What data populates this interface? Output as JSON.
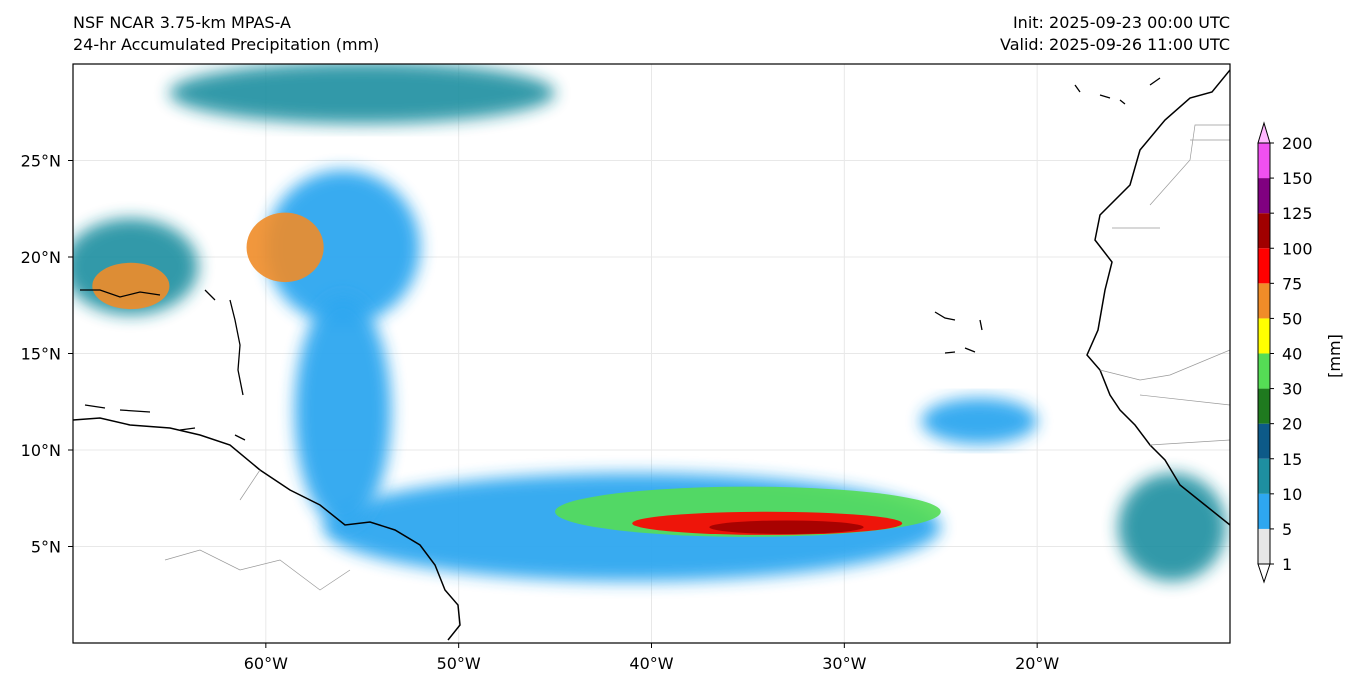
{
  "header": {
    "model": "NSF NCAR 3.75-km MPAS-A",
    "field": "24-hr Accumulated Precipitation (mm)",
    "init": "Init: 2025-09-23 00:00 UTC",
    "valid": "Valid: 2025-09-26 11:00 UTC"
  },
  "map": {
    "lon_range": [
      -70,
      -10
    ],
    "lat_range": [
      0,
      30
    ],
    "lon_ticks": [
      "60°W",
      "50°W",
      "40°W",
      "30°W",
      "20°W"
    ],
    "lon_tick_values": [
      -60,
      -50,
      -40,
      -30,
      -20
    ],
    "lat_ticks": [
      "5°N",
      "10°N",
      "15°N",
      "20°N",
      "25°N"
    ],
    "lat_tick_values": [
      5,
      10,
      15,
      20,
      25
    ],
    "gridlines": true
  },
  "colorbar": {
    "unit_label": "[mm]",
    "levels": [
      "1",
      "5",
      "10",
      "15",
      "20",
      "30",
      "40",
      "50",
      "75",
      "100",
      "125",
      "150",
      "200"
    ],
    "colors": [
      "#e6e6e6",
      "#2ea7f0",
      "#1e8fa0",
      "#0d5a88",
      "#1f7a1f",
      "#55dd55",
      "#ffff00",
      "#f08c28",
      "#ff0000",
      "#a00000",
      "#800080",
      "#f050f0"
    ]
  },
  "precip_regions": [
    {
      "lon": -41,
      "lat": 6.0,
      "rlon": 16,
      "rlat": 2.8,
      "level": 1
    },
    {
      "lon": -35,
      "lat": 6.8,
      "rlon": 10,
      "rlat": 1.3,
      "level": 5
    },
    {
      "lon": -34,
      "lat": 6.2,
      "rlon": 7,
      "rlat": 0.6,
      "level": 8
    },
    {
      "lon": -33,
      "lat": 6.0,
      "rlon": 4,
      "rlat": 0.35,
      "level": 9
    },
    {
      "lon": -56,
      "lat": 20.5,
      "rlon": 4,
      "rlat": 4,
      "level": 1
    },
    {
      "lon": -59,
      "lat": 20.5,
      "rlon": 2,
      "rlat": 1.8,
      "level": 7
    },
    {
      "lon": -67,
      "lat": 19.5,
      "rlon": 3.5,
      "rlat": 2.5,
      "level": 2
    },
    {
      "lon": -67,
      "lat": 18.5,
      "rlon": 2,
      "rlat": 1.2,
      "level": 7
    },
    {
      "lon": -55,
      "lat": 28.5,
      "rlon": 10,
      "rlat": 1.6,
      "level": 2
    },
    {
      "lon": -56,
      "lat": 12.0,
      "rlon": 2.5,
      "rlat": 6,
      "level": 1
    },
    {
      "lon": -13,
      "lat": 6.0,
      "rlon": 2.8,
      "rlat": 2.8,
      "level": 2
    },
    {
      "lon": -23,
      "lat": 11.5,
      "rlon": 3,
      "rlat": 1.2,
      "level": 1
    }
  ]
}
